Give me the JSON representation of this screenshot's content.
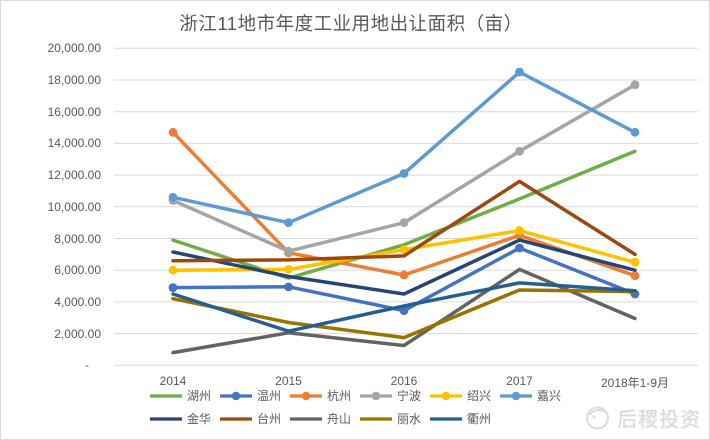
{
  "page": {
    "background": "#ffffff",
    "border_color": "#d9d9d9"
  },
  "watermark": {
    "text": "后稷投资",
    "icon": "circular-logo",
    "color": "#d8d8d8"
  },
  "chart_data": {
    "type": "line",
    "title": "浙江11地市年度工业用地出让面积（亩）",
    "title_color": "#595959",
    "categories": [
      "2014",
      "2015",
      "2016",
      "2017",
      "2018年1-9月"
    ],
    "series": [
      {
        "key": "huzhou",
        "name": "湖州",
        "color": "#70AD47",
        "marker": false,
        "values": [
          7900,
          5500,
          7600,
          10500,
          13500
        ]
      },
      {
        "key": "wenzhou",
        "name": "温州",
        "color": "#4472C4",
        "marker": true,
        "values": [
          4900,
          4950,
          3450,
          7400,
          4500
        ]
      },
      {
        "key": "hangzhou",
        "name": "杭州",
        "color": "#ED7D31",
        "marker": true,
        "values": [
          14700,
          7100,
          5700,
          8200,
          5650
        ]
      },
      {
        "key": "ningbo",
        "name": "宁波",
        "color": "#A5A5A5",
        "marker": true,
        "values": [
          10400,
          7200,
          9000,
          13500,
          17700
        ]
      },
      {
        "key": "shaoxing",
        "name": "绍兴",
        "color": "#FFC000",
        "marker": true,
        "values": [
          6000,
          6050,
          7300,
          8500,
          6500
        ]
      },
      {
        "key": "jiaxing",
        "name": "嘉兴",
        "color": "#5B9BD5",
        "marker": true,
        "values": [
          10600,
          9000,
          12100,
          18500,
          14700
        ]
      },
      {
        "key": "jinhua",
        "name": "金华",
        "color": "#264478",
        "marker": false,
        "values": [
          7150,
          5600,
          4500,
          7900,
          6000
        ]
      },
      {
        "key": "taizhou",
        "name": "台州",
        "color": "#9E480E",
        "marker": false,
        "values": [
          6600,
          6650,
          6900,
          11600,
          7000
        ]
      },
      {
        "key": "zhoushan",
        "name": "舟山",
        "color": "#636363",
        "marker": false,
        "values": [
          800,
          2050,
          1250,
          6050,
          2950
        ]
      },
      {
        "key": "lishui",
        "name": "丽水",
        "color": "#997300",
        "marker": false,
        "values": [
          4200,
          2700,
          1750,
          4750,
          4650
        ]
      },
      {
        "key": "quzhou",
        "name": "衢州",
        "color": "#255E91",
        "marker": false,
        "values": [
          4500,
          2150,
          3750,
          5200,
          4700
        ]
      }
    ],
    "y_axis": {
      "min": 0,
      "max": 20000,
      "step": 2000,
      "tick_labels": [
        "-",
        "2,000.00",
        "4,000.00",
        "6,000.00",
        "8,000.00",
        "10,000.00",
        "12,000.00",
        "14,000.00",
        "16,000.00",
        "18,000.00",
        "20,000.00"
      ],
      "grid_color": "#D9D9D9",
      "label_color": "#595959"
    },
    "grid": true,
    "legend_position": "bottom",
    "legend_rows": [
      [
        "湖州",
        "温州",
        "杭州",
        "宁波",
        "绍兴",
        "嘉兴"
      ],
      [
        "金华",
        "台州",
        "舟山",
        "丽水",
        "衢州"
      ]
    ]
  }
}
